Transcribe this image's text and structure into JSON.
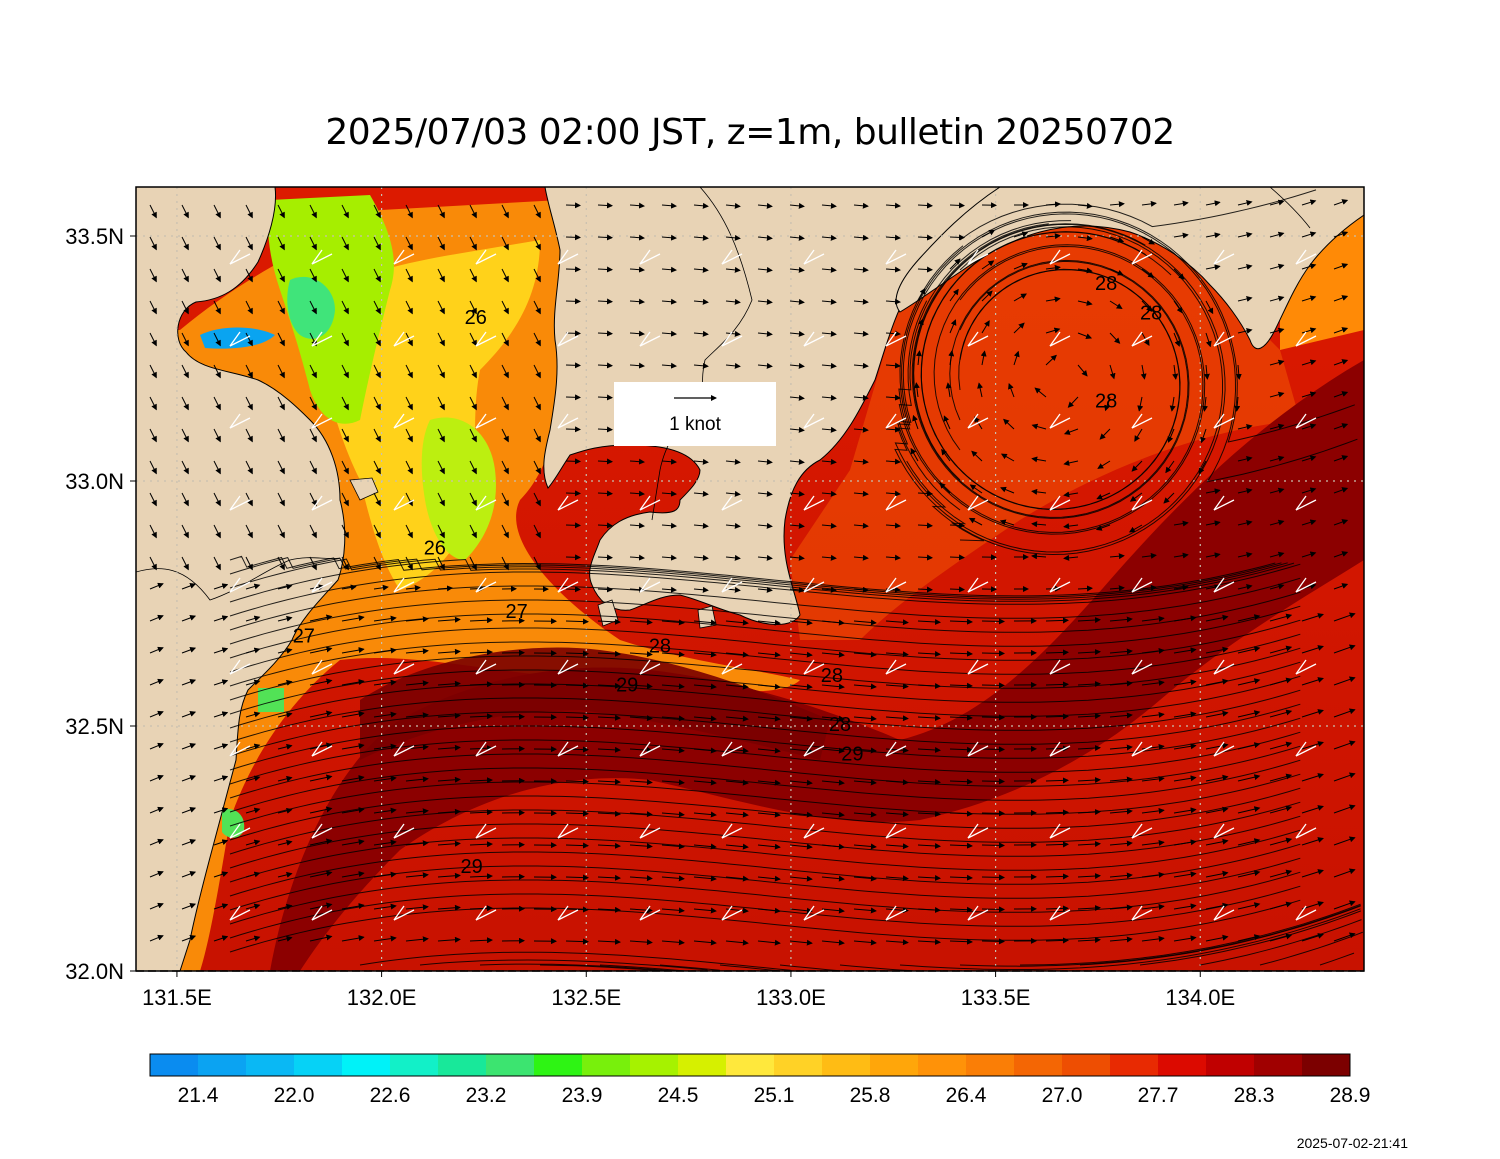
{
  "title": "2025/07/03 02:00 JST, z=1m, bulletin 20250702",
  "timestamp": "2025-07-02-21:41",
  "scale_arrow_label": "1 knot",
  "colors": {
    "land": "#e8d3b5",
    "sea_warm": "#cc1500",
    "sea_hot": "#8c0000",
    "axis_frame": "#000000",
    "grid": "#bbbbbb"
  },
  "map": {
    "lon_range": [
      131.4,
      134.4
    ],
    "lat_range": [
      32.0,
      33.6
    ],
    "lon_ticks": [
      "131.5E",
      "132.0E",
      "132.5E",
      "133.0E",
      "133.5E",
      "134.0E"
    ],
    "lat_ticks": [
      "33.5N",
      "33.0N",
      "32.5N",
      "32.0N"
    ],
    "grid": true,
    "contour_labels": [
      {
        "text": "26",
        "lon": 132.23,
        "lat": 33.32
      },
      {
        "text": "26",
        "lon": 132.13,
        "lat": 32.85
      },
      {
        "text": "27",
        "lon": 132.33,
        "lat": 32.72
      },
      {
        "text": "27",
        "lon": 131.81,
        "lat": 32.67
      },
      {
        "text": "28",
        "lon": 132.68,
        "lat": 32.65
      },
      {
        "text": "29",
        "lon": 132.6,
        "lat": 32.57
      },
      {
        "text": "28",
        "lon": 133.1,
        "lat": 32.59
      },
      {
        "text": "28",
        "lon": 133.12,
        "lat": 32.49
      },
      {
        "text": "29",
        "lon": 133.15,
        "lat": 32.43
      },
      {
        "text": "29",
        "lon": 132.22,
        "lat": 32.2
      },
      {
        "text": "28",
        "lon": 133.77,
        "lat": 33.39
      },
      {
        "text": "28",
        "lon": 133.88,
        "lat": 33.33
      },
      {
        "text": "28",
        "lon": 133.77,
        "lat": 33.15
      }
    ]
  },
  "colorbar": {
    "labels": [
      "21.4",
      "22.0",
      "22.6",
      "23.2",
      "23.9",
      "24.5",
      "25.1",
      "25.8",
      "26.4",
      "27.0",
      "27.7",
      "28.3",
      "28.9"
    ],
    "colors": [
      "#0a8cf0",
      "#0ba3f2",
      "#0ab8f4",
      "#06d2f6",
      "#00f2f8",
      "#12f0c8",
      "#18e89a",
      "#3ce470",
      "#2ef414",
      "#78f00c",
      "#a6f200",
      "#d6f000",
      "#ffe83c",
      "#ffd226",
      "#ffbc14",
      "#ffa60a",
      "#ff9208",
      "#fa7e06",
      "#f46604",
      "#ee4e02",
      "#e82a02",
      "#dc0a00",
      "#c00000",
      "#a00000",
      "#7c0000"
    ]
  }
}
